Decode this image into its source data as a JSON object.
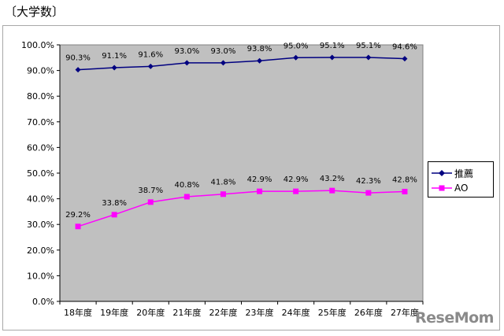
{
  "heading": "〔大学数〕",
  "watermark": "ReseMom",
  "colors": {
    "plot_bg": "#c0c0c0",
    "series1": "#000080",
    "series2": "#ff00ff"
  },
  "chart_data": {
    "type": "line",
    "categories": [
      "18年度",
      "19年度",
      "20年度",
      "21年度",
      "22年度",
      "23年度",
      "24年度",
      "25年度",
      "26年度",
      "27年度"
    ],
    "series": [
      {
        "name": "推薦",
        "marker": "diamond",
        "color": "#000080",
        "values": [
          90.3,
          91.1,
          91.6,
          93.0,
          93.0,
          93.8,
          95.0,
          95.1,
          95.1,
          94.6
        ],
        "labels": [
          "90.3%",
          "91.1%",
          "91.6%",
          "93.0%",
          "93.0%",
          "93.8%",
          "95.0%",
          "95.1%",
          "95.1%",
          "94.6%"
        ]
      },
      {
        "name": "AO",
        "marker": "square",
        "color": "#ff00ff",
        "values": [
          29.2,
          33.8,
          38.7,
          40.8,
          41.8,
          42.9,
          42.9,
          43.2,
          42.3,
          42.8
        ],
        "labels": [
          "29.2%",
          "33.8%",
          "38.7%",
          "40.8%",
          "41.8%",
          "42.9%",
          "42.9%",
          "43.2%",
          "42.3%",
          "42.8%"
        ]
      }
    ],
    "yticks": [
      "0.0%",
      "10.0%",
      "20.0%",
      "30.0%",
      "40.0%",
      "50.0%",
      "60.0%",
      "70.0%",
      "80.0%",
      "90.0%",
      "100.0%"
    ],
    "ylim": [
      0,
      100
    ],
    "grid": false,
    "legend_position": "right"
  }
}
